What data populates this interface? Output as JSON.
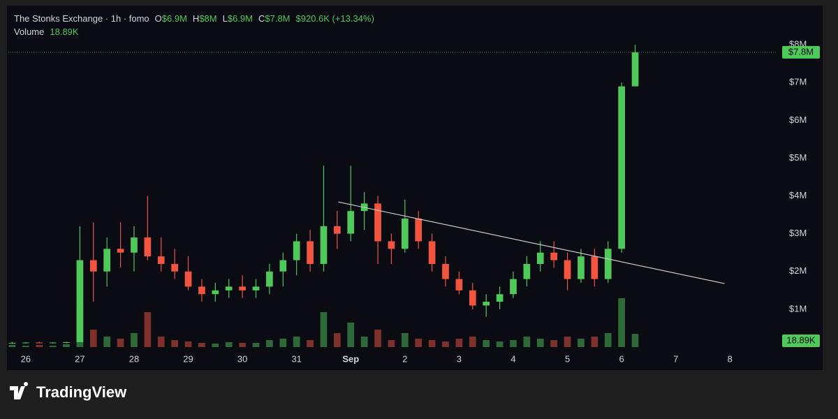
{
  "chart_data": {
    "type": "candlestick",
    "title": "The Stonks Exchange · 1h · fomo",
    "ohlc_labels": [
      {
        "key": "O",
        "value": "$6.9M"
      },
      {
        "key": "H",
        "value": "$8M"
      },
      {
        "key": "L",
        "value": "$6.9M"
      },
      {
        "key": "C",
        "value": "$7.8M"
      }
    ],
    "change": "$920.6K (+13.34%)",
    "up_color": "#4fc95a",
    "down_color": "#f2553f",
    "x": [
      25.75,
      26,
      26.25,
      26.5,
      26.75,
      27,
      27.25,
      27.5,
      27.75,
      28,
      28.25,
      28.5,
      28.75,
      29,
      29.25,
      29.5,
      29.75,
      30,
      30.25,
      30.5,
      30.75,
      31,
      31.25,
      31.5,
      31.75,
      32,
      32.25,
      32.5,
      32.75,
      33,
      33.25,
      33.5,
      33.75,
      34,
      34.25,
      34.5,
      34.75,
      35,
      35.25,
      35.5,
      35.75,
      36,
      36.25,
      36.5,
      36.75,
      37,
      37.25
    ],
    "open": [
      0.1,
      0.11,
      0.12,
      0.11,
      0.12,
      0.13,
      2.3,
      2.0,
      2.6,
      2.5,
      2.9,
      2.4,
      2.2,
      2.0,
      1.6,
      1.4,
      1.5,
      1.6,
      1.5,
      1.6,
      2.0,
      2.3,
      2.8,
      2.2,
      3.2,
      3.0,
      3.6,
      3.8,
      2.8,
      2.6,
      3.4,
      2.8,
      2.2,
      1.8,
      1.5,
      1.1,
      1.2,
      1.4,
      1.8,
      2.2,
      2.5,
      2.3,
      1.8,
      2.4,
      1.8,
      2.6,
      6.9
    ],
    "high": [
      0.13,
      0.13,
      0.14,
      0.13,
      0.14,
      3.2,
      3.3,
      2.9,
      3.3,
      3.2,
      4.0,
      2.9,
      2.6,
      2.4,
      1.8,
      1.7,
      1.8,
      1.9,
      1.8,
      2.2,
      2.5,
      3.0,
      3.1,
      4.8,
      3.6,
      4.8,
      4.1,
      4.0,
      3.0,
      3.9,
      3.6,
      3.0,
      2.4,
      2.0,
      1.7,
      1.4,
      1.6,
      2.0,
      2.4,
      2.8,
      2.8,
      2.5,
      2.6,
      2.6,
      2.8,
      7.0,
      8
    ],
    "low": [
      0.09,
      0.1,
      0.1,
      0.1,
      0.1,
      0.13,
      1.2,
      1.6,
      2.1,
      2.0,
      2.3,
      2.0,
      1.8,
      1.5,
      1.2,
      1.2,
      1.3,
      1.3,
      1.3,
      1.4,
      1.6,
      1.9,
      2.0,
      2.0,
      2.6,
      2.8,
      3.1,
      2.2,
      2.2,
      2.5,
      2.6,
      2.0,
      1.6,
      1.4,
      1.0,
      0.8,
      1.0,
      1.3,
      1.6,
      2.0,
      2.1,
      1.5,
      1.7,
      1.6,
      1.7,
      2.5,
      6.9
    ],
    "close": [
      0.11,
      0.12,
      0.11,
      0.12,
      0.13,
      2.3,
      2.0,
      2.6,
      2.5,
      2.9,
      2.4,
      2.2,
      2.0,
      1.6,
      1.4,
      1.5,
      1.6,
      1.5,
      1.6,
      2.0,
      2.3,
      2.8,
      2.2,
      3.2,
      3.0,
      3.6,
      3.8,
      2.8,
      2.6,
      3.4,
      2.8,
      2.2,
      1.8,
      1.5,
      1.1,
      1.2,
      1.4,
      1.8,
      2.2,
      2.5,
      2.3,
      1.8,
      2.4,
      1.8,
      2.6,
      6.9,
      7.8
    ],
    "volume": {
      "name": "Volume",
      "value_label": "18.89K",
      "values": [
        3,
        2,
        3,
        2,
        4,
        60,
        25,
        15,
        12,
        20,
        50,
        15,
        10,
        8,
        6,
        5,
        7,
        6,
        6,
        10,
        12,
        15,
        10,
        50,
        20,
        35,
        15,
        25,
        10,
        20,
        12,
        10,
        8,
        12,
        15,
        10,
        8,
        10,
        15,
        12,
        10,
        15,
        12,
        15,
        20,
        70,
        18.89
      ]
    },
    "trendline": {
      "x": [
        31.77,
        38.9
      ],
      "y": [
        3.84,
        1.68
      ]
    },
    "xlim": [
      25.68,
      39.86
    ],
    "xticks": [
      26,
      27,
      28,
      29,
      30,
      31,
      {
        "value": 32,
        "label": "Sep"
      },
      {
        "value": 33,
        "label": "2"
      },
      {
        "value": 34,
        "label": "3"
      },
      {
        "value": 35,
        "label": "4"
      },
      {
        "value": 36,
        "label": "5"
      },
      {
        "value": 37,
        "label": "6"
      },
      {
        "value": 38,
        "label": "7"
      },
      {
        "value": 39,
        "label": "8"
      }
    ],
    "ylim": [
      0,
      9
    ],
    "yticks": [
      {
        "value": 1,
        "label": "$1M"
      },
      {
        "value": 2,
        "label": "$2M"
      },
      {
        "value": 3,
        "label": "$3M"
      },
      {
        "value": 4,
        "label": "$4M"
      },
      {
        "value": 5,
        "label": "$5M"
      },
      {
        "value": 6,
        "label": "$6M"
      },
      {
        "value": 7,
        "label": "$7M"
      },
      {
        "value": 8,
        "label": "$8M"
      }
    ],
    "brand": "TradingView"
  }
}
